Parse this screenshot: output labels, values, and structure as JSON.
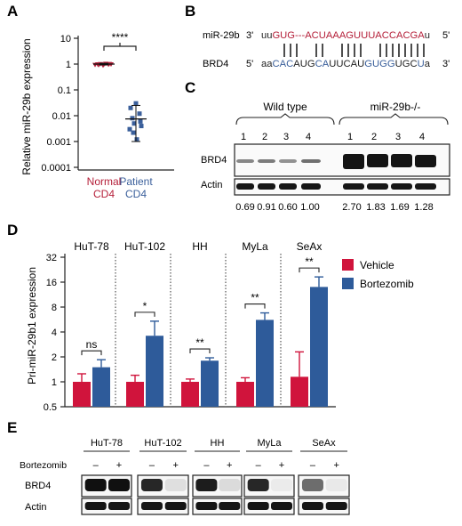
{
  "panels": {
    "A": {
      "label": "A",
      "ylabel": "Relative miR-29b expression",
      "yticks": [
        "10",
        "1",
        "0.1",
        "0.01",
        "0.001",
        "0.0001"
      ],
      "ytick_values": [
        10,
        1,
        0.1,
        0.01,
        0.001,
        0.0001
      ],
      "groups": [
        {
          "line1": "Normal",
          "line2": "CD4",
          "color": "#b5203a"
        },
        {
          "line1": "Patient",
          "line2": "CD4",
          "color": "#3a5f9b"
        }
      ],
      "significance": "****"
    },
    "B": {
      "label": "B",
      "mir": {
        "name": "miR-29b",
        "end5": "3'",
        "end3": "5'",
        "segments": [
          {
            "text": "uu",
            "color": "#222222"
          },
          {
            "text": "GUG---ACUAAAGUUUACCACGA",
            "color": "#b5203a"
          },
          {
            "text": "u",
            "color": "#222222"
          }
        ]
      },
      "target": {
        "name": "BRD4",
        "end5": "5'",
        "end3": "3'",
        "segments": [
          {
            "text": "aa",
            "color": "#222222"
          },
          {
            "text": "CAC",
            "color": "#3a5f9b"
          },
          {
            "text": "AUG",
            "color": "#222222"
          },
          {
            "text": "CA",
            "color": "#3a5f9b"
          },
          {
            "text": "UUCAU",
            "color": "#222222"
          },
          {
            "text": "GUGG",
            "color": "#3a5f9b"
          },
          {
            "text": "UGC",
            "color": "#222222"
          },
          {
            "text": "U",
            "color": "#3a5f9b"
          },
          {
            "text": "a",
            "color": "#222222"
          }
        ]
      }
    },
    "C": {
      "label": "C",
      "groups": [
        "Wild type",
        "miR-29b-/-"
      ],
      "lanes": [
        "1",
        "2",
        "3",
        "4",
        "1",
        "2",
        "3",
        "4"
      ],
      "rows": [
        "BRD4",
        "Actin"
      ],
      "ratios": [
        "0.69",
        "0.91",
        "0.60",
        "1.00",
        "2.70",
        "1.83",
        "1.69",
        "1.28"
      ]
    },
    "D": {
      "label": "D",
      "ylabel": "Pri-miR-29b1 expression",
      "yticks": [
        "32",
        "16",
        "8",
        "4",
        "2",
        "1",
        "0.5"
      ]
    },
    "E": {
      "label": "E",
      "cell_lines": [
        "HuT-78",
        "HuT-102",
        "HH",
        "MyLa",
        "SeAx"
      ],
      "treatment_label": "Bortezomib",
      "signs": [
        "–",
        "+"
      ],
      "rows": [
        "BRD4",
        "Actin"
      ]
    }
  },
  "chart_data": [
    {
      "panel": "A",
      "type": "scatter",
      "scale": "log",
      "ylim": [
        0.0001,
        10
      ],
      "categories": [
        "Normal CD4",
        "Patient CD4"
      ],
      "series": [
        {
          "name": "Normal CD4",
          "color": "#b5203a",
          "values": [
            0.95,
            1.0,
            1.02,
            0.9,
            1.05,
            0.97,
            1.0,
            0.93,
            0.98,
            1.03
          ],
          "mean": 1.0,
          "err": [
            0.93,
            1.07
          ]
        },
        {
          "name": "Patient CD4",
          "color": "#3a5f9b",
          "values": [
            0.03,
            0.02,
            0.012,
            0.008,
            0.006,
            0.005,
            0.004,
            0.003,
            0.0012,
            0.0022
          ],
          "mean": 0.0075,
          "err": [
            0.001,
            0.025
          ]
        }
      ],
      "significance": "****"
    },
    {
      "panel": "D",
      "type": "bar",
      "scale": "log2",
      "ylim": [
        0.5,
        32
      ],
      "categories": [
        "HuT-78",
        "HuT-102",
        "HH",
        "MyLa",
        "SeAx"
      ],
      "series": [
        {
          "name": "Vehicle",
          "color": "#d0143c",
          "values": [
            1.0,
            1.0,
            1.0,
            1.0,
            1.15
          ],
          "err_hi": [
            1.25,
            1.2,
            1.08,
            1.12,
            2.3
          ]
        },
        {
          "name": "Bortezomib",
          "color": "#2e5b9a",
          "values": [
            1.5,
            3.6,
            1.8,
            5.6,
            14.0
          ],
          "err_hi": [
            1.85,
            5.4,
            1.95,
            6.8,
            18.5
          ]
        }
      ],
      "significance": [
        "ns",
        "*",
        "**",
        "**",
        "**"
      ],
      "legend": "right"
    }
  ]
}
